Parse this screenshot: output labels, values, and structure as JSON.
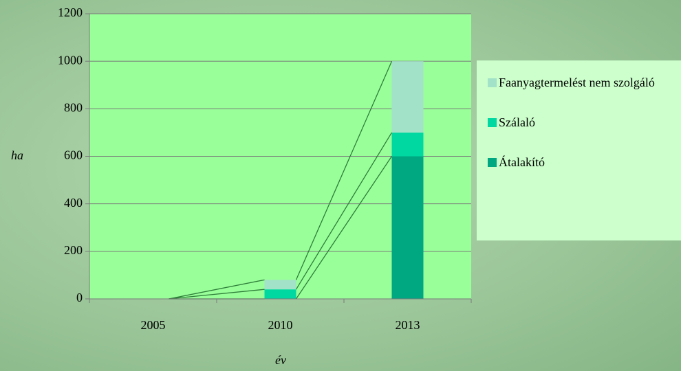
{
  "chart_data": {
    "type": "stacked_bar",
    "categories": [
      "2005",
      "2010",
      "2013"
    ],
    "series": [
      {
        "name": "Átalakító",
        "color": "#00a882",
        "values": [
          0,
          0,
          600
        ]
      },
      {
        "name": "Szálaló",
        "color": "#00d8a2",
        "values": [
          0,
          40,
          100
        ]
      },
      {
        "name": "Faanyagtermelést nem szolgáló",
        "color": "#a2e2c8",
        "values": [
          0,
          40,
          300
        ]
      }
    ],
    "ylim": [
      0,
      1200
    ],
    "yticks": [
      0,
      200,
      400,
      600,
      800,
      1000,
      1200
    ],
    "ylabel": "ha",
    "xlabel": "év",
    "grid": true,
    "legend": "right",
    "plot_color": "#99ff99"
  }
}
